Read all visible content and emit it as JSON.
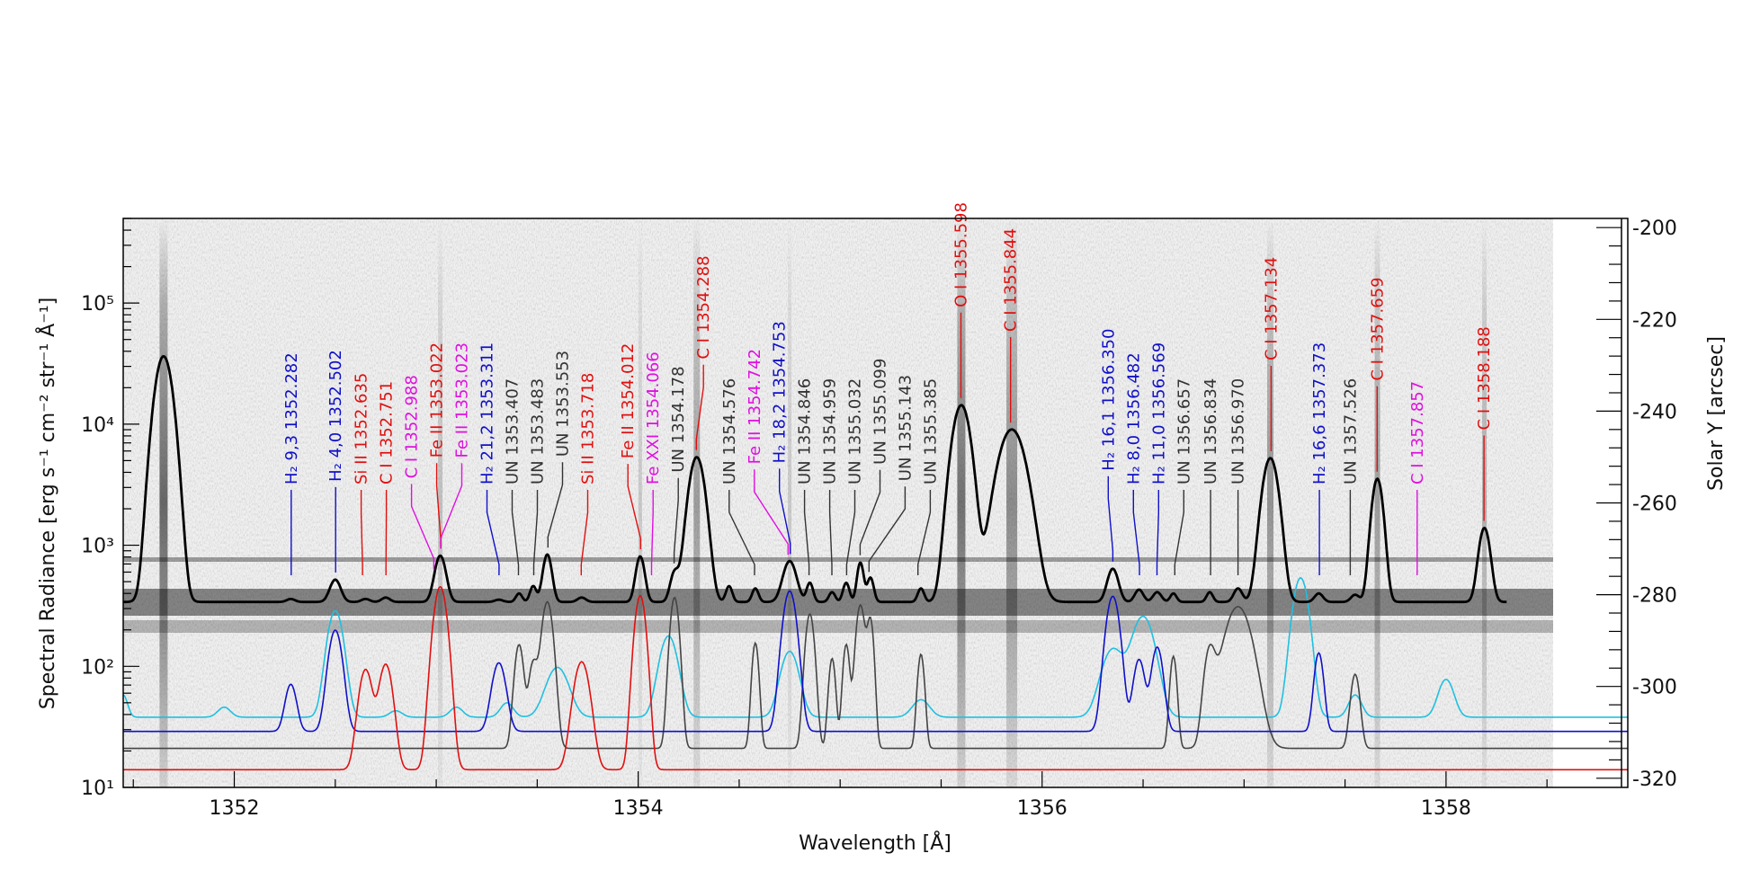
{
  "chart_data": {
    "type": "line",
    "xlabel": "Wavelength [Å]",
    "ylabel": "Spectral Radiance [erg s⁻¹ cm⁻² str⁻¹ Å⁻¹]",
    "y2label": "Solar Y [arcsec]",
    "xlim": [
      1351.45,
      1358.9
    ],
    "ylim": [
      10,
      500000
    ],
    "y_scale": "log",
    "y2lim": [
      -322,
      -198
    ],
    "x_ticks": [
      1352,
      1354,
      1356,
      1358
    ],
    "x_tick_labels": [
      "1352",
      "1354",
      "1356",
      "1358"
    ],
    "y_ticks": [
      10,
      100,
      1000,
      10000,
      100000
    ],
    "y_tick_labels": [
      "10¹",
      "10²",
      "10³",
      "10⁴",
      "10⁵"
    ],
    "y2_ticks": [
      -200,
      -220,
      -240,
      -260,
      -280,
      -300,
      -320
    ],
    "y2_tick_labels": [
      "-200",
      "-220",
      "-240",
      "-260",
      "-280",
      "-300",
      "-320"
    ],
    "background": "grayscale spectrogram image",
    "colors": {
      "observed": "#000000",
      "ci_model": "#e01010",
      "h2_model": "#1010c8",
      "un_model": "#444444",
      "fe_model": "#20c0e0",
      "label_red": "#e01010",
      "label_blue": "#1010c8",
      "label_magenta": "#e010e0",
      "label_gray": "#333333"
    },
    "series": [
      {
        "base": 340,
        "peaks": [
          [
            1351.65,
            36000,
            0.038
          ],
          [
            1352.28,
            20,
            0.02
          ],
          [
            1352.5,
            180,
            0.025
          ],
          [
            1352.65,
            20,
            0.02
          ],
          [
            1352.75,
            30,
            0.02
          ],
          [
            1353.02,
            480,
            0.025
          ],
          [
            1353.31,
            15,
            0.02
          ],
          [
            1353.41,
            60,
            0.015
          ],
          [
            1353.48,
            120,
            0.015
          ],
          [
            1353.55,
            500,
            0.02
          ],
          [
            1353.72,
            30,
            0.02
          ],
          [
            1354.01,
            470,
            0.02
          ],
          [
            1354.18,
            250,
            0.02
          ],
          [
            1354.29,
            5000,
            0.035
          ],
          [
            1354.45,
            120,
            0.015
          ],
          [
            1354.58,
            100,
            0.015
          ],
          [
            1354.75,
            400,
            0.03
          ],
          [
            1354.85,
            150,
            0.015
          ],
          [
            1354.96,
            70,
            0.015
          ],
          [
            1355.03,
            150,
            0.015
          ],
          [
            1355.1,
            380,
            0.015
          ],
          [
            1355.15,
            200,
            0.015
          ],
          [
            1355.4,
            100,
            0.015
          ],
          [
            1355.6,
            14000,
            0.04
          ],
          [
            1355.85,
            8700,
            0.06
          ],
          [
            1356.35,
            300,
            0.025
          ],
          [
            1356.48,
            90,
            0.02
          ],
          [
            1356.57,
            70,
            0.02
          ],
          [
            1356.65,
            60,
            0.015
          ],
          [
            1356.83,
            70,
            0.015
          ],
          [
            1356.97,
            100,
            0.02
          ],
          [
            1357.13,
            4900,
            0.035
          ],
          [
            1357.37,
            60,
            0.02
          ],
          [
            1357.55,
            50,
            0.02
          ],
          [
            1357.66,
            3200,
            0.025
          ],
          [
            1358.19,
            1050,
            0.025
          ]
        ]
      },
      {
        "base": 14,
        "peaks": [
          [
            1352.65,
            80,
            0.03
          ],
          [
            1352.75,
            90,
            0.03
          ],
          [
            1353.02,
            440,
            0.03
          ],
          [
            1353.72,
            95,
            0.035
          ],
          [
            1354.01,
            370,
            0.025
          ]
        ]
      },
      {
        "base": 29,
        "peaks": [
          [
            1352.28,
            42,
            0.025
          ],
          [
            1352.5,
            170,
            0.03
          ],
          [
            1353.31,
            78,
            0.03
          ],
          [
            1354.75,
            390,
            0.03
          ],
          [
            1356.35,
            350,
            0.03
          ],
          [
            1356.48,
            85,
            0.025
          ],
          [
            1356.57,
            115,
            0.025
          ],
          [
            1357.37,
            100,
            0.02
          ]
        ]
      },
      {
        "base": 21,
        "peaks": [
          [
            1353.41,
            130,
            0.02
          ],
          [
            1353.48,
            85,
            0.02
          ],
          [
            1353.55,
            320,
            0.025
          ],
          [
            1354.18,
            350,
            0.02
          ],
          [
            1354.58,
            135,
            0.015
          ],
          [
            1354.85,
            250,
            0.02
          ],
          [
            1354.96,
            95,
            0.015
          ],
          [
            1355.03,
            130,
            0.015
          ],
          [
            1355.1,
            300,
            0.02
          ],
          [
            1355.15,
            220,
            0.015
          ],
          [
            1355.4,
            105,
            0.015
          ],
          [
            1356.65,
            100,
            0.015
          ],
          [
            1356.83,
            110,
            0.025
          ],
          [
            1356.97,
            290,
            0.06
          ],
          [
            1357.55,
            65,
            0.02
          ]
        ]
      },
      {
        "base": 38,
        "peaks": [
          [
            1351.45,
            20,
            0.02
          ],
          [
            1351.95,
            8,
            0.03
          ],
          [
            1352.5,
            250,
            0.035
          ],
          [
            1352.8,
            5,
            0.03
          ],
          [
            1353.1,
            8,
            0.03
          ],
          [
            1353.35,
            12,
            0.03
          ],
          [
            1353.6,
            60,
            0.05
          ],
          [
            1354.15,
            140,
            0.04
          ],
          [
            1354.75,
            95,
            0.04
          ],
          [
            1355.4,
            15,
            0.04
          ],
          [
            1356.35,
            100,
            0.05
          ],
          [
            1356.5,
            220,
            0.05
          ],
          [
            1357.28,
            500,
            0.035
          ],
          [
            1357.55,
            20,
            0.03
          ],
          [
            1358.0,
            40,
            0.035
          ]
        ]
      }
    ],
    "line_labels": [
      {
        "text": "H₂ 9,3 1352.282",
        "x": 1352.282,
        "color": "blue"
      },
      {
        "text": "H₂ 4,0 1352.502",
        "x": 1352.502,
        "color": "blue"
      },
      {
        "text": "Si II 1352.635",
        "x": 1352.635,
        "color": "red"
      },
      {
        "text": "C I 1352.751",
        "x": 1352.751,
        "color": "red"
      },
      {
        "text": "C I 1352.988",
        "x": 1352.988,
        "color": "magenta"
      },
      {
        "text": "Fe II 1353.022",
        "x": 1353.022,
        "color": "red"
      },
      {
        "text": "Fe II 1353.023",
        "x": 1353.023,
        "color": "magenta"
      },
      {
        "text": "H₂ 21,2 1353.311",
        "x": 1353.311,
        "color": "blue"
      },
      {
        "text": "UN 1353.407",
        "x": 1353.407,
        "color": "gray"
      },
      {
        "text": "UN 1353.483",
        "x": 1353.483,
        "color": "gray"
      },
      {
        "text": "UN 1353.553",
        "x": 1353.553,
        "color": "gray"
      },
      {
        "text": "Si II 1353.718",
        "x": 1353.718,
        "color": "red"
      },
      {
        "text": "Fe II 1354.012",
        "x": 1354.012,
        "color": "red"
      },
      {
        "text": "Fe XXI 1354.066",
        "x": 1354.066,
        "color": "magenta"
      },
      {
        "text": "UN 1354.178",
        "x": 1354.178,
        "color": "gray"
      },
      {
        "text": "C I 1354.288",
        "x": 1354.288,
        "color": "red"
      },
      {
        "text": "UN 1354.576",
        "x": 1354.576,
        "color": "gray"
      },
      {
        "text": "Fe II 1354.742",
        "x": 1354.742,
        "color": "magenta"
      },
      {
        "text": "H₂ 18,2 1354.753",
        "x": 1354.753,
        "color": "blue"
      },
      {
        "text": "UN 1354.846",
        "x": 1354.846,
        "color": "gray"
      },
      {
        "text": "UN 1354.959",
        "x": 1354.959,
        "color": "gray"
      },
      {
        "text": "UN 1355.032",
        "x": 1355.032,
        "color": "gray"
      },
      {
        "text": "UN 1355.099",
        "x": 1355.099,
        "color": "gray"
      },
      {
        "text": "UN 1355.143",
        "x": 1355.143,
        "color": "gray"
      },
      {
        "text": "UN 1355.385",
        "x": 1355.385,
        "color": "gray"
      },
      {
        "text": "O I 1355.598",
        "x": 1355.598,
        "color": "red"
      },
      {
        "text": "C I 1355.844",
        "x": 1355.844,
        "color": "red"
      },
      {
        "text": "H₂ 16,1 1356.350",
        "x": 1356.35,
        "color": "blue"
      },
      {
        "text": "H₂ 8,0 1356.482",
        "x": 1356.482,
        "color": "blue"
      },
      {
        "text": "H₂ 11,0 1356.569",
        "x": 1356.569,
        "color": "blue"
      },
      {
        "text": "UN 1356.657",
        "x": 1356.657,
        "color": "gray"
      },
      {
        "text": "UN 1356.834",
        "x": 1356.834,
        "color": "gray"
      },
      {
        "text": "UN 1356.970",
        "x": 1356.97,
        "color": "gray"
      },
      {
        "text": "C I 1357.134",
        "x": 1357.134,
        "color": "red"
      },
      {
        "text": "H₂ 16,6 1357.373",
        "x": 1357.373,
        "color": "blue"
      },
      {
        "text": "UN 1357.526",
        "x": 1357.526,
        "color": "gray"
      },
      {
        "text": "C I 1357.659",
        "x": 1357.659,
        "color": "red"
      },
      {
        "text": "C I 1357.857",
        "x": 1357.857,
        "color": "magenta"
      },
      {
        "text": "C I 1358.188",
        "x": 1358.188,
        "color": "red"
      }
    ]
  }
}
